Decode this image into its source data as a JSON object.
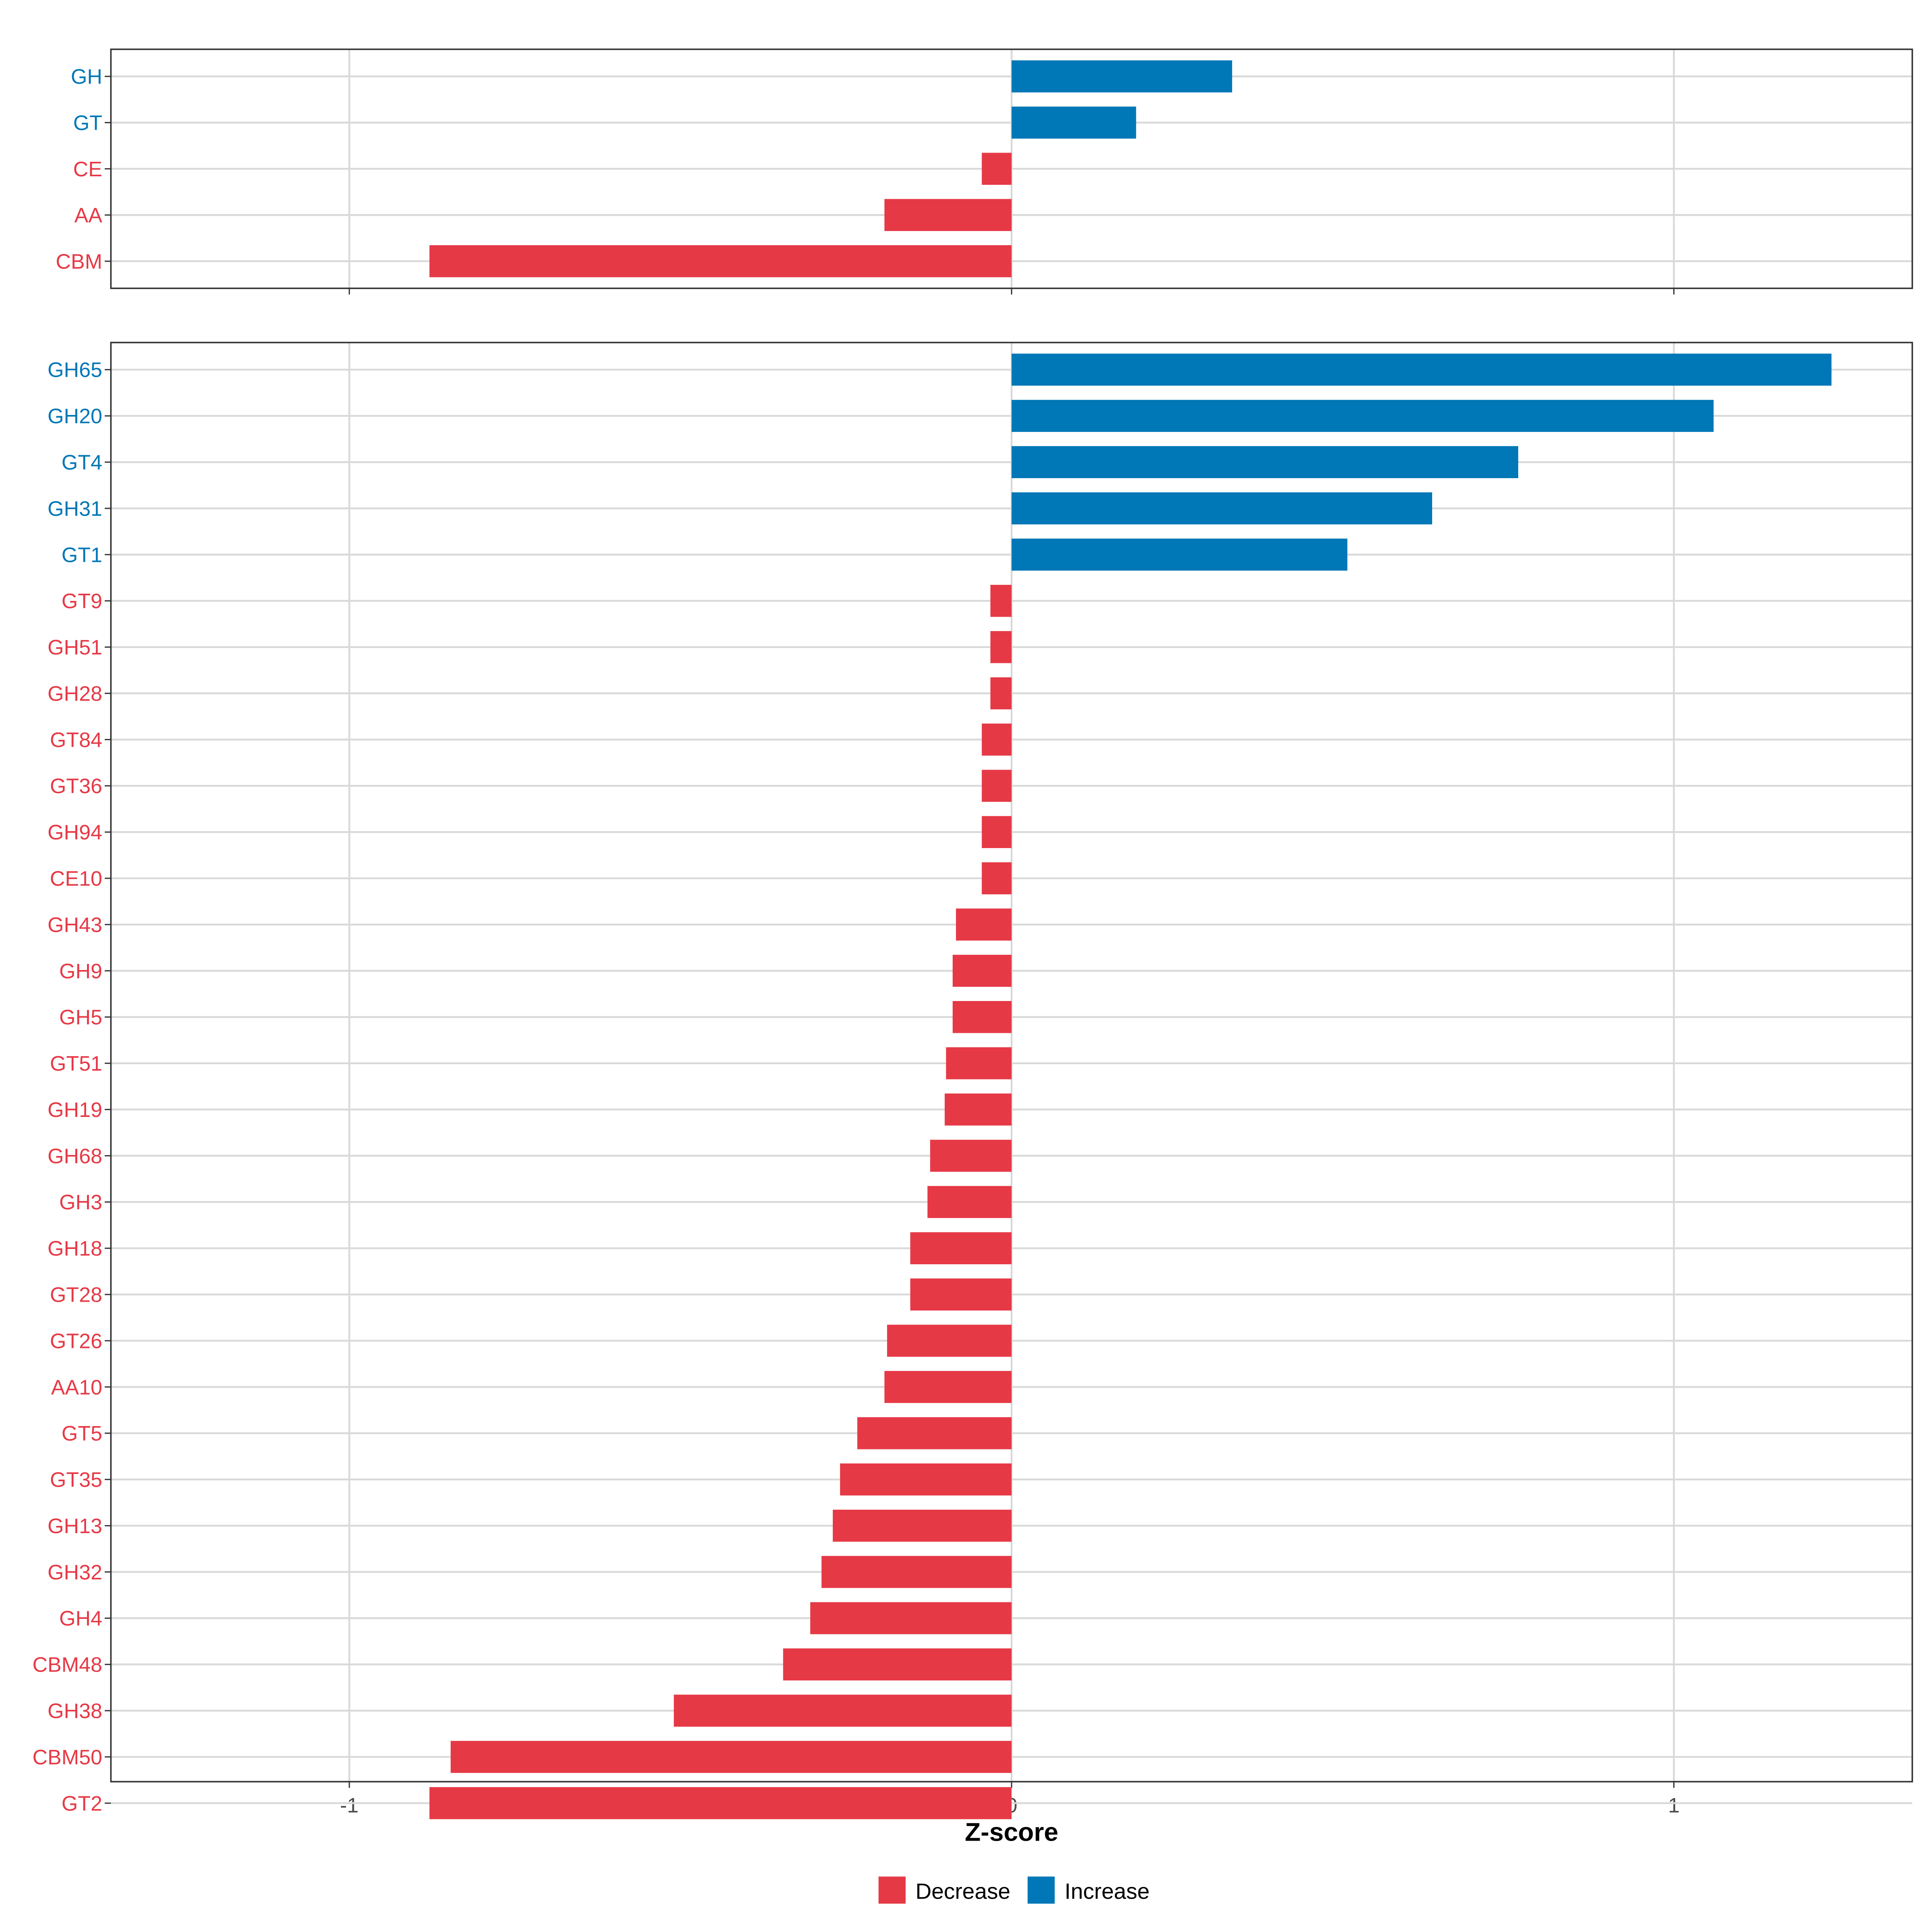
{
  "chart_data": [
    {
      "type": "bar",
      "orientation": "horizontal",
      "panel": "top",
      "categories": [
        "GH",
        "GT",
        "CE",
        "AA",
        "CBM"
      ],
      "values": [
        0.333,
        0.188,
        -0.045,
        -0.192,
        -0.879
      ],
      "xlim": [
        -1.36,
        1.36
      ]
    },
    {
      "type": "bar",
      "orientation": "horizontal",
      "panel": "bottom",
      "categories": [
        "GH65",
        "GH20",
        "GT4",
        "GH31",
        "GT1",
        "GT9",
        "GH51",
        "GH28",
        "GT84",
        "GT36",
        "GH94",
        "CE10",
        "GH43",
        "GH9",
        "GH5",
        "GT51",
        "GH19",
        "GH68",
        "GH3",
        "GH18",
        "GT28",
        "GT26",
        "AA10",
        "GT5",
        "GT35",
        "GH13",
        "GH32",
        "GH4",
        "CBM48",
        "GH38",
        "CBM50",
        "GT2"
      ],
      "values": [
        1.238,
        1.06,
        0.765,
        0.635,
        0.507,
        -0.032,
        -0.032,
        -0.032,
        -0.045,
        -0.045,
        -0.045,
        -0.045,
        -0.084,
        -0.089,
        -0.089,
        -0.099,
        -0.101,
        -0.123,
        -0.127,
        -0.153,
        -0.153,
        -0.188,
        -0.192,
        -0.233,
        -0.259,
        -0.27,
        -0.287,
        -0.304,
        -0.345,
        -0.51,
        -0.847,
        -0.879
      ],
      "xlim": [
        -1.36,
        1.36
      ]
    }
  ],
  "axis": {
    "xlabel": "Z-score",
    "ticks": [
      -1,
      0,
      1
    ],
    "tick_labels": [
      "-1",
      "0",
      "1"
    ],
    "grid": true
  },
  "legend": {
    "placement": "bottom",
    "items": [
      {
        "label": "Decrease",
        "color": "#E63946"
      },
      {
        "label": "Increase",
        "color": "#0077B6"
      }
    ]
  },
  "colors": {
    "decrease": "#E63946",
    "increase": "#0077B6",
    "grid": "#D9D9D9",
    "frame": "#333333"
  }
}
